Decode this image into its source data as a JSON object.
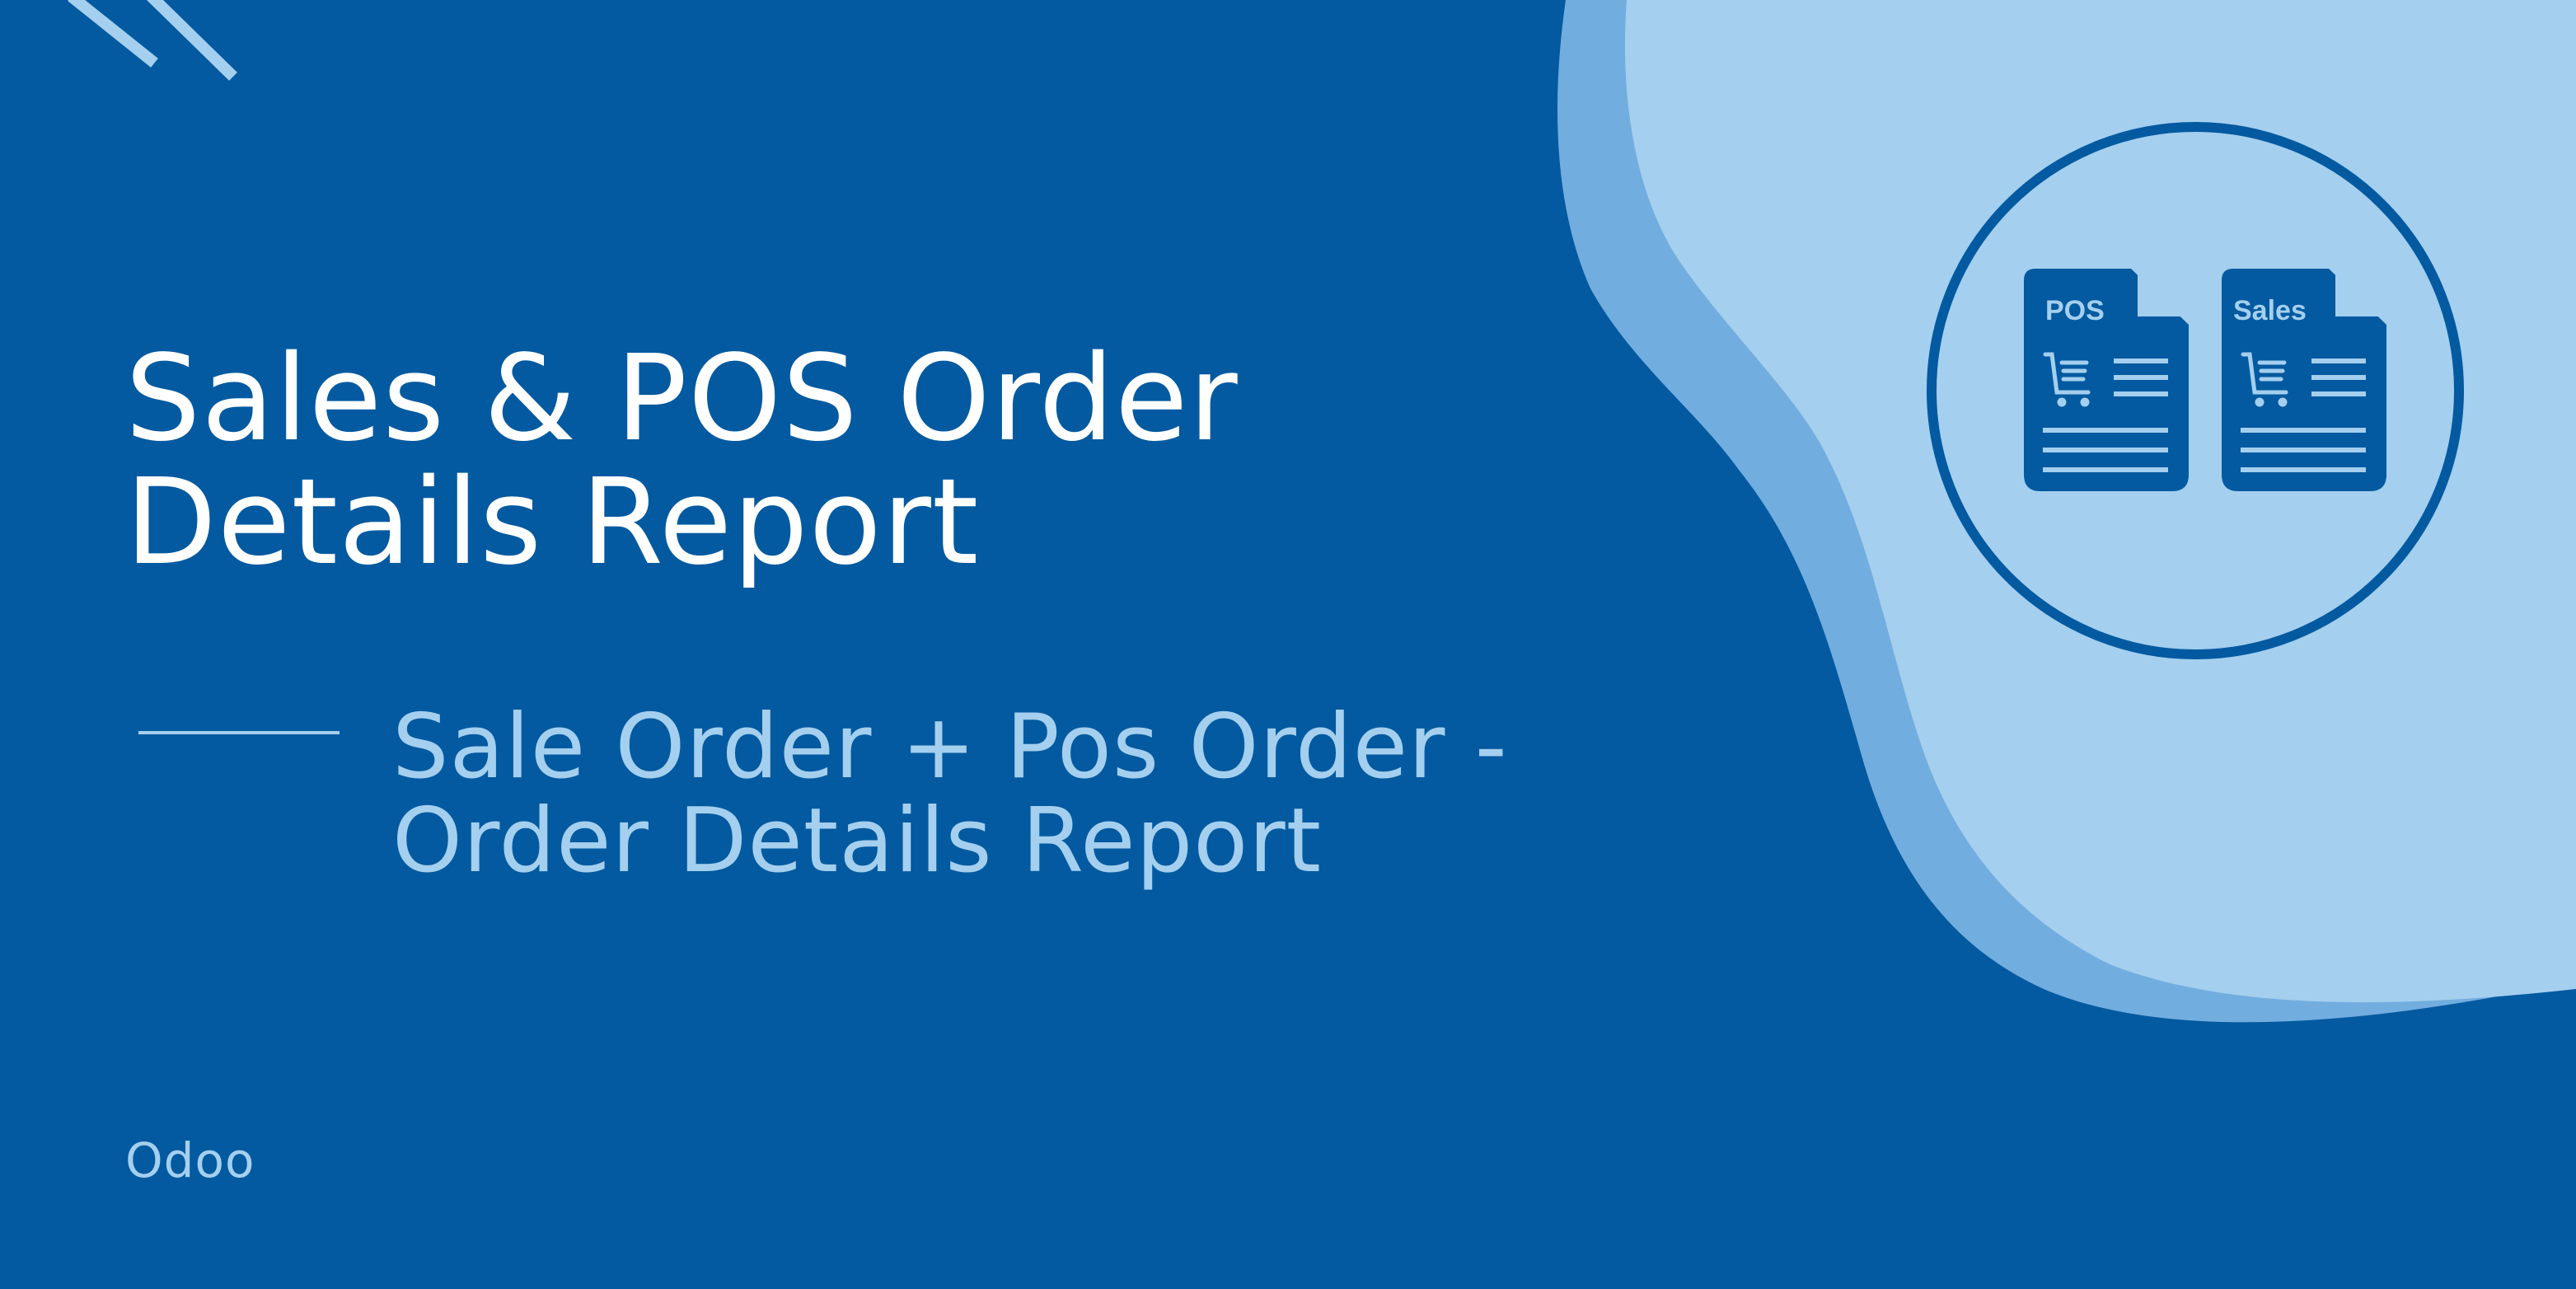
{
  "colors": {
    "background": "#035aa0",
    "wave_outer": "#72ade0",
    "wave_inner": "#a4cfee",
    "text_primary": "#ffffff",
    "text_secondary": "#a4cfee"
  },
  "title": {
    "line1": "Sales & POS Order",
    "line2": "Details Report"
  },
  "subtitle": {
    "line1": "Sale Order + Pos Order -",
    "line2": "Order Details Report"
  },
  "brand": "Odoo",
  "documents": [
    {
      "label": "POS",
      "icon": "shopping-cart-icon"
    },
    {
      "label": "Sales",
      "icon": "shopping-cart-icon"
    }
  ]
}
